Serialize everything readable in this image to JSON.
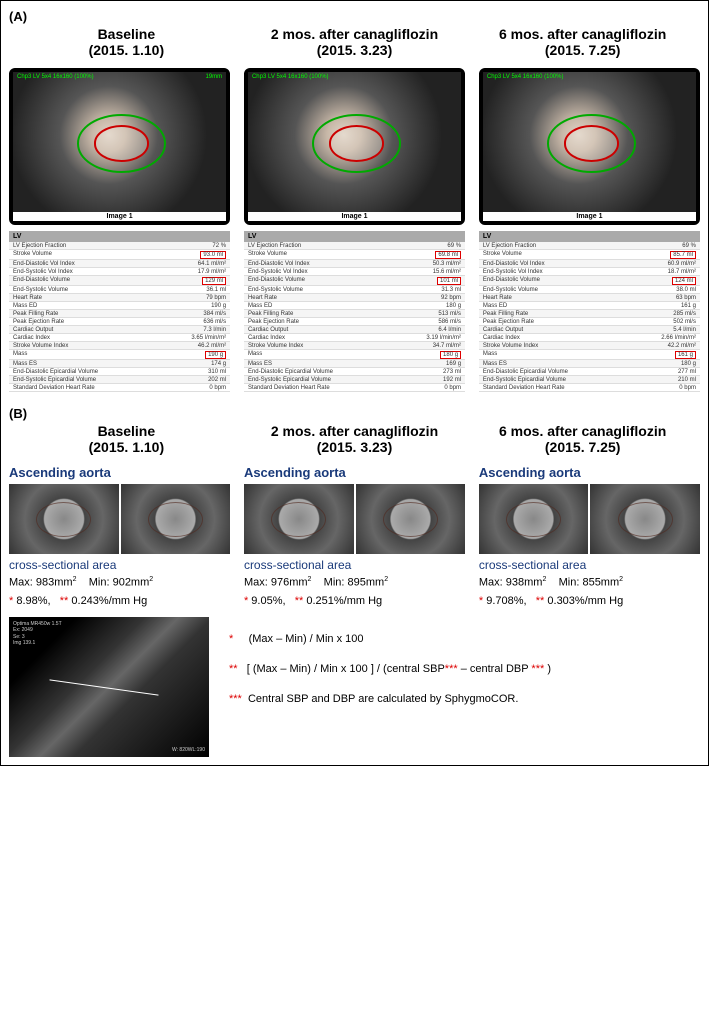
{
  "panelA": {
    "label": "(A)",
    "timepoints": [
      {
        "title": "Baseline",
        "date": "(2015. 1.10)"
      },
      {
        "title": "2 mos. after canagliflozin",
        "date": "(2015. 3.23)"
      },
      {
        "title": "6 mos. after canagliflozin",
        "date": "(2015. 7.25)"
      }
    ],
    "mri_caption": "Image 1",
    "lv_header": "LV",
    "lv_params": [
      "LV Ejection Fraction",
      "Stroke Volume",
      "End-Diastolic Vol Index",
      "End-Systolic Vol Index",
      "End-Diastolic Volume",
      "End-Systolic Volume",
      "Heart Rate",
      "Mass ED",
      "Peak Filling Rate",
      "Peak Ejection Rate",
      "Cardiac Output",
      "Cardiac Index",
      "Stroke Volume Index",
      "Mass",
      "Mass ES",
      "End-Diastolic Epicardial Volume",
      "End-Systolic Epicardial Volume",
      "Standard Deviation Heart Rate"
    ],
    "lv_values": [
      [
        "72 %",
        "93.0 ml",
        "64.1 ml/m²",
        "17.9 ml/m²",
        "129 ml",
        "36.1 ml",
        "79 bpm",
        "190 g",
        "384 ml/s",
        "636 ml/s",
        "7.3 l/min",
        "3.65 l/min/m²",
        "46.2 ml/m²",
        "190 g",
        "174 g",
        "310 ml",
        "202 ml",
        "0 bpm"
      ],
      [
        "69 %",
        "69.8 ml",
        "50.3 ml/m²",
        "15.6 ml/m²",
        "101 ml",
        "31.3 ml",
        "92 bpm",
        "180 g",
        "513 ml/s",
        "586 ml/s",
        "6.4 l/min",
        "3.19 l/min/m²",
        "34.7 ml/m²",
        "180 g",
        "169 g",
        "273 ml",
        "192 ml",
        "0 bpm"
      ],
      [
        "69 %",
        "85.7 ml",
        "60.9 ml/m²",
        "18.7 ml/m²",
        "124 ml",
        "38.0 ml",
        "63 bpm",
        "161 g",
        "285 ml/s",
        "502 ml/s",
        "5.4 l/min",
        "2.66 l/min/m²",
        "42.2 ml/m²",
        "161 g",
        "180 g",
        "277 ml",
        "210 ml",
        "0 bpm"
      ]
    ],
    "highlight_indices": [
      1,
      4,
      13
    ]
  },
  "panelB": {
    "label": "(B)",
    "aorta_title": "Ascending aorta",
    "csa_label": "cross-sectional area",
    "cols": [
      {
        "max": "983mm",
        "min": "902mm",
        "pct": "8.98%,",
        "dist": "0.243%/mm Hg"
      },
      {
        "max": "976mm",
        "min": "895mm",
        "pct": "9.05%,",
        "dist": "0.251%/mm Hg"
      },
      {
        "max": "938mm",
        "min": "855mm",
        "pct": "9.708%,",
        "dist": "0.303%/mm Hg"
      }
    ],
    "max_label": "Max: ",
    "min_label": "Min: ",
    "star1": "*",
    "star2": "**",
    "formulas": {
      "f1_marker": "*",
      "f1_text": "(Max – Min) / Min x 100",
      "f2_marker": "**",
      "f2_text_a": "[ (Max – Min) / Min x 100 ] / (central SBP",
      "f2_text_b": " – central DBP ",
      "f2_text_c": " )",
      "f3_marker": "***",
      "f3_text": "Central SBP and DBP are calculated by SphygmoCOR.",
      "triple": "***"
    }
  }
}
